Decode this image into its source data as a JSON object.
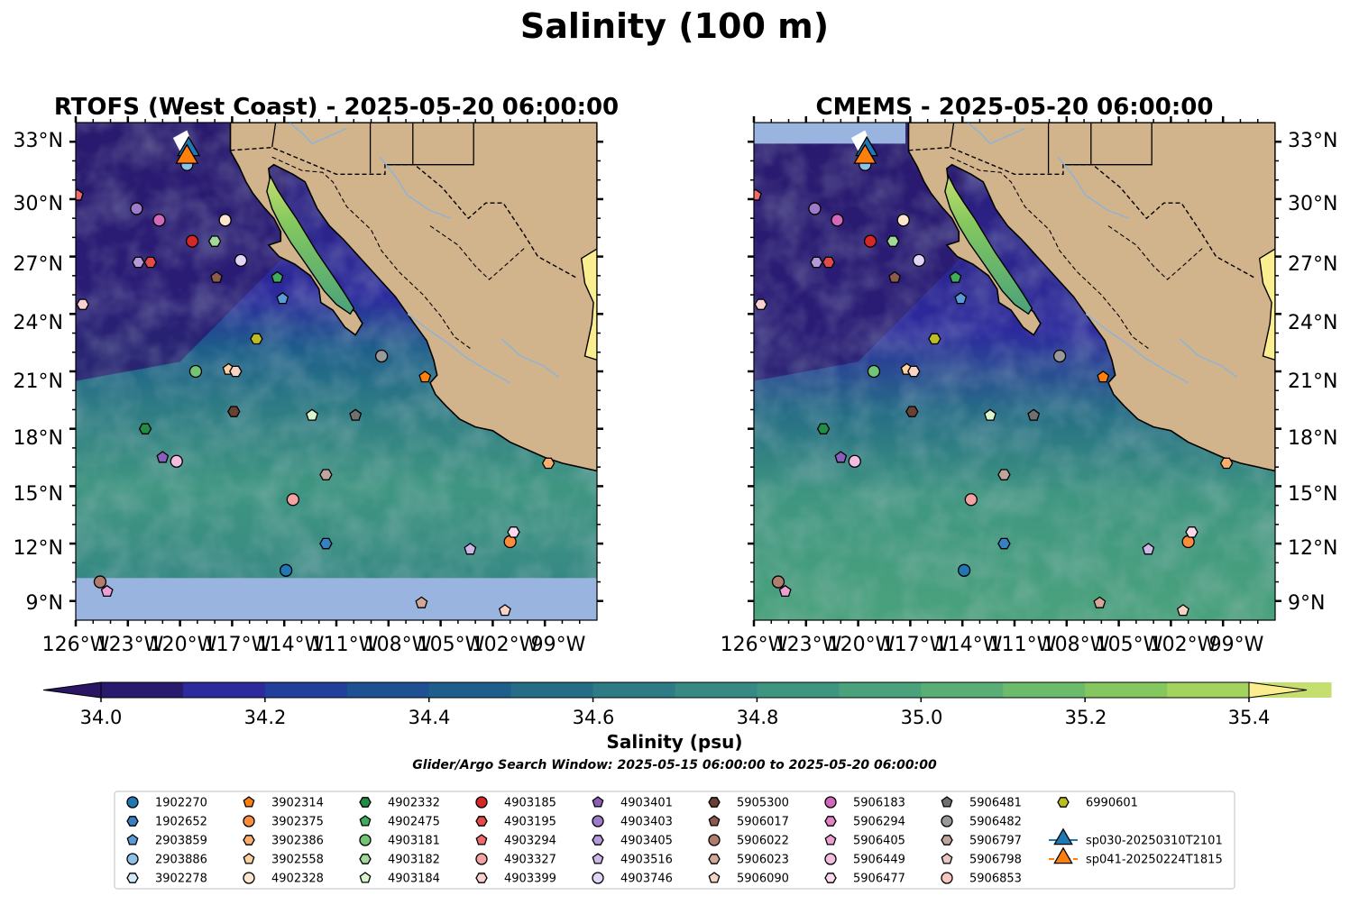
{
  "figure": {
    "title": "Salinity (100 m)",
    "subtitle": "Glider/Argo Search Window: 2025-05-15 06:00:00 to 2025-05-20 06:00:00"
  },
  "chart_data": {
    "type": "map",
    "panels": [
      {
        "title": "RTOFS (West Coast) - 2025-05-20 06:00:00",
        "model": "RTOFS",
        "data_southern_limit_lat": 10.2
      },
      {
        "title": "CMEMS - 2025-05-20 06:00:00",
        "model": "CMEMS",
        "data_southern_limit_lat": 8.0
      }
    ],
    "extent": {
      "lon": [
        -126,
        -96
      ],
      "lat": [
        8,
        34
      ]
    },
    "x_ticks": [
      -126,
      -123,
      -120,
      -117,
      -114,
      -111,
      -108,
      -105,
      -102,
      -99
    ],
    "x_tick_labels": [
      "126°W",
      "123°W",
      "120°W",
      "117°W",
      "114°W",
      "111°W",
      "108°W",
      "105°W",
      "102°W",
      "99°W"
    ],
    "y_ticks": [
      9,
      12,
      15,
      18,
      21,
      24,
      27,
      30,
      33
    ],
    "y_tick_labels": [
      "9°N",
      "12°N",
      "15°N",
      "18°N",
      "21°N",
      "24°N",
      "27°N",
      "30°N",
      "33°N"
    ],
    "colorbar": {
      "label": "Salinity (psu)",
      "min": 34.0,
      "max": 35.4,
      "step": 0.1,
      "extend": "both",
      "ticks": [
        34.0,
        34.2,
        34.4,
        34.6,
        34.8,
        35.0,
        35.2,
        35.4
      ],
      "tick_labels": [
        "34.0",
        "34.2",
        "34.4",
        "34.6",
        "34.8",
        "35.0",
        "35.2",
        "35.4"
      ],
      "colors": [
        "#2a1a6e",
        "#2d2a9e",
        "#233f9c",
        "#1d5192",
        "#1d5f8a",
        "#256d86",
        "#2e7b85",
        "#378984",
        "#3f9680",
        "#4aa27c",
        "#58ae74",
        "#6bbb6a",
        "#83c75e",
        "#a3d35e",
        "#c5de70"
      ],
      "under_color": "#2a1664",
      "over_color": "#fbee90"
    },
    "colors": {
      "land": "#d2b48c",
      "nodata": "#99b4de",
      "border": "#000000"
    },
    "floats": [
      {
        "id": "1902270",
        "marker": "circle",
        "color": "#1f77b4"
      },
      {
        "id": "1902652",
        "marker": "hexagon",
        "color": "#3a7fc1"
      },
      {
        "id": "2903859",
        "marker": "pentagon",
        "color": "#5b9bd5"
      },
      {
        "id": "2903886",
        "marker": "circle",
        "color": "#8ec1e6"
      },
      {
        "id": "3902278",
        "marker": "hexagon",
        "color": "#d4eaf7"
      },
      {
        "id": "3902314",
        "marker": "pentagon",
        "color": "#ff7f0e"
      },
      {
        "id": "3902375",
        "marker": "circle",
        "color": "#fd8d3c"
      },
      {
        "id": "3902386",
        "marker": "hexagon",
        "color": "#fdae6b"
      },
      {
        "id": "3902558",
        "marker": "pentagon",
        "color": "#fdd0a2"
      },
      {
        "id": "4902328",
        "marker": "circle",
        "color": "#fee6ce"
      },
      {
        "id": "4902332",
        "marker": "hexagon",
        "color": "#238b45"
      },
      {
        "id": "4902475",
        "marker": "pentagon",
        "color": "#41ab5d"
      },
      {
        "id": "4903181",
        "marker": "circle",
        "color": "#74c476"
      },
      {
        "id": "4903182",
        "marker": "hexagon",
        "color": "#a1d99b"
      },
      {
        "id": "4903184",
        "marker": "pentagon",
        "color": "#d9f5d0"
      },
      {
        "id": "4903185",
        "marker": "circle",
        "color": "#d62728"
      },
      {
        "id": "4903195",
        "marker": "hexagon",
        "color": "#e34a4a"
      },
      {
        "id": "4903294",
        "marker": "pentagon",
        "color": "#ef6a6a"
      },
      {
        "id": "4903327",
        "marker": "circle",
        "color": "#f4a3a3"
      },
      {
        "id": "4903399",
        "marker": "hexagon",
        "color": "#fbd0d0"
      },
      {
        "id": "4903401",
        "marker": "pentagon",
        "color": "#8a5fb8"
      },
      {
        "id": "4903403",
        "marker": "circle",
        "color": "#9e7bc9"
      },
      {
        "id": "4903405",
        "marker": "hexagon",
        "color": "#b59ad9"
      },
      {
        "id": "4903516",
        "marker": "pentagon",
        "color": "#ccb8e8"
      },
      {
        "id": "4903746",
        "marker": "circle",
        "color": "#e3d5f5"
      },
      {
        "id": "5905300",
        "marker": "hexagon",
        "color": "#6b4034"
      },
      {
        "id": "5906017",
        "marker": "pentagon",
        "color": "#8c5a4e"
      },
      {
        "id": "5906022",
        "marker": "circle",
        "color": "#b07c6e"
      },
      {
        "id": "5906023",
        "marker": "hexagon",
        "color": "#d4a898"
      },
      {
        "id": "5906090",
        "marker": "pentagon",
        "color": "#f5d3c5"
      },
      {
        "id": "5906183",
        "marker": "circle",
        "color": "#d268b8"
      },
      {
        "id": "5906294",
        "marker": "hexagon",
        "color": "#e283c6"
      },
      {
        "id": "5906405",
        "marker": "pentagon",
        "color": "#eb9fd3"
      },
      {
        "id": "5906449",
        "marker": "circle",
        "color": "#f3bde2"
      },
      {
        "id": "5906477",
        "marker": "hexagon",
        "color": "#fad9ef"
      },
      {
        "id": "5906481",
        "marker": "pentagon",
        "color": "#707070"
      },
      {
        "id": "5906482",
        "marker": "circle",
        "color": "#999999"
      },
      {
        "id": "5906797",
        "marker": "hexagon",
        "color": "#c0a59d"
      },
      {
        "id": "5906798",
        "marker": "pentagon",
        "color": "#e8c8c0"
      },
      {
        "id": "5906853",
        "marker": "circle",
        "color": "#f8c5c0"
      },
      {
        "id": "6990601",
        "marker": "hexagon",
        "color": "#bcbd22"
      }
    ],
    "gliders": [
      {
        "id": "sp030-20250310T2101",
        "marker": "triangle",
        "color": "#1f77b4",
        "line": "solid"
      },
      {
        "id": "sp041-20250224T1815",
        "marker": "triangle",
        "color": "#ff7f0e",
        "line": "dashed"
      }
    ],
    "positions": [
      {
        "lon": -122.5,
        "lat": 29.5,
        "marker": "circle",
        "color": "#9e7bc9"
      },
      {
        "lon": -121.2,
        "lat": 28.9,
        "marker": "circle",
        "color": "#d268b8"
      },
      {
        "lon": -119.3,
        "lat": 27.8,
        "marker": "circle",
        "color": "#d62728"
      },
      {
        "lon": -118.0,
        "lat": 27.8,
        "marker": "hexagon",
        "color": "#a1d99b"
      },
      {
        "lon": -117.4,
        "lat": 28.9,
        "marker": "circle",
        "color": "#fee6ce"
      },
      {
        "lon": -116.5,
        "lat": 26.8,
        "marker": "circle",
        "color": "#e3d5f5"
      },
      {
        "lon": -122.4,
        "lat": 26.7,
        "marker": "hexagon",
        "color": "#b59ad9"
      },
      {
        "lon": -121.7,
        "lat": 26.7,
        "marker": "hexagon",
        "color": "#e34a4a"
      },
      {
        "lon": -125.9,
        "lat": 30.2,
        "marker": "pentagon",
        "color": "#ef6a6a"
      },
      {
        "lon": -119.6,
        "lat": 31.8,
        "marker": "circle",
        "color": "#8ec1e6"
      },
      {
        "lon": -125.6,
        "lat": 24.5,
        "marker": "hexagon",
        "color": "#fbd0d0"
      },
      {
        "lon": -117.9,
        "lat": 25.9,
        "marker": "pentagon",
        "color": "#8c5a4e"
      },
      {
        "lon": -114.4,
        "lat": 25.9,
        "marker": "pentagon",
        "color": "#41ab5d"
      },
      {
        "lon": -114.1,
        "lat": 24.8,
        "marker": "pentagon",
        "color": "#5b9bd5"
      },
      {
        "lon": -115.6,
        "lat": 22.7,
        "marker": "hexagon",
        "color": "#bcbd22"
      },
      {
        "lon": -119.1,
        "lat": 21.0,
        "marker": "circle",
        "color": "#74c476"
      },
      {
        "lon": -117.2,
        "lat": 21.1,
        "marker": "pentagon",
        "color": "#fdd0a2"
      },
      {
        "lon": -116.8,
        "lat": 21.0,
        "marker": "hexagon",
        "color": "#f5d3c5"
      },
      {
        "lon": -108.4,
        "lat": 21.8,
        "marker": "circle",
        "color": "#999999"
      },
      {
        "lon": -105.9,
        "lat": 20.7,
        "marker": "pentagon",
        "color": "#ff7f0e"
      },
      {
        "lon": -116.9,
        "lat": 18.9,
        "marker": "hexagon",
        "color": "#6b4034"
      },
      {
        "lon": -112.4,
        "lat": 18.7,
        "marker": "pentagon",
        "color": "#d9f5d0"
      },
      {
        "lon": -109.9,
        "lat": 18.7,
        "marker": "pentagon",
        "color": "#707070"
      },
      {
        "lon": -122.0,
        "lat": 18.0,
        "marker": "hexagon",
        "color": "#238b45"
      },
      {
        "lon": -121.0,
        "lat": 16.5,
        "marker": "pentagon",
        "color": "#8a5fb8"
      },
      {
        "lon": -120.2,
        "lat": 16.3,
        "marker": "circle",
        "color": "#f3bde2"
      },
      {
        "lon": -111.6,
        "lat": 15.6,
        "marker": "hexagon",
        "color": "#c0a59d"
      },
      {
        "lon": -113.5,
        "lat": 14.3,
        "marker": "circle",
        "color": "#f4a3a3"
      },
      {
        "lon": -111.6,
        "lat": 12.0,
        "marker": "hexagon",
        "color": "#3a7fc1"
      },
      {
        "lon": -113.9,
        "lat": 10.6,
        "marker": "circle",
        "color": "#1f77b4"
      },
      {
        "lon": -124.6,
        "lat": 10.0,
        "marker": "circle",
        "color": "#b07c6e"
      },
      {
        "lon": -124.2,
        "lat": 9.5,
        "marker": "pentagon",
        "color": "#eb9fd3"
      },
      {
        "lon": -106.1,
        "lat": 8.9,
        "marker": "pentagon",
        "color": "#d4a898"
      },
      {
        "lon": -103.3,
        "lat": 11.7,
        "marker": "pentagon",
        "color": "#ccb8e8"
      },
      {
        "lon": -101.0,
        "lat": 12.1,
        "marker": "circle",
        "color": "#fd8d3c"
      },
      {
        "lon": -100.8,
        "lat": 12.6,
        "marker": "hexagon",
        "color": "#fad9ef"
      },
      {
        "lon": -101.3,
        "lat": 8.5,
        "marker": "pentagon",
        "color": "#f5d3c5"
      },
      {
        "lon": -98.8,
        "lat": 16.2,
        "marker": "hexagon",
        "color": "#fdae6b"
      }
    ],
    "glider_positions": [
      {
        "lon": -119.5,
        "lat": 32.6,
        "color": "#1f77b4"
      },
      {
        "lon": -119.6,
        "lat": 32.2,
        "color": "#ff7f0e"
      }
    ]
  }
}
